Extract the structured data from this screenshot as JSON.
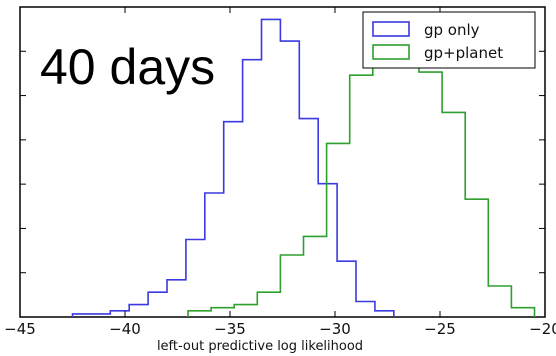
{
  "chart_data": {
    "type": "histogram",
    "annotation": "40 days",
    "xlabel": "left-out predictive log likelihood",
    "ylabel": "",
    "xlim": [
      -45,
      -20
    ],
    "ylim": [
      0,
      1.0
    ],
    "xticks": [
      -45,
      -40,
      -35,
      -30,
      -25,
      -20
    ],
    "xtick_labels": [
      "−45",
      "−40",
      "−35",
      "−30",
      "−25",
      "−20"
    ],
    "grid": false,
    "legend_position": "top-right",
    "series": [
      {
        "name": "gp only",
        "color": "#3a3ae0",
        "bin_edges": [
          -42.5,
          -41.6,
          -40.7,
          -39.8,
          -38.9,
          -38.0,
          -37.1,
          -36.2,
          -35.3,
          -34.4,
          -33.5,
          -32.6,
          -31.7,
          -30.8,
          -29.9,
          -29.0,
          -28.1,
          -27.2
        ],
        "counts": [
          0.01,
          0.01,
          0.02,
          0.04,
          0.08,
          0.12,
          0.25,
          0.4,
          0.63,
          0.83,
          0.96,
          0.89,
          0.64,
          0.43,
          0.18,
          0.05,
          0.02
        ]
      },
      {
        "name": "gp+planet",
        "color": "#2ea02e",
        "bin_edges": [
          -37.0,
          -35.9,
          -34.8,
          -33.7,
          -32.6,
          -31.5,
          -30.4,
          -29.3,
          -28.2,
          -27.1,
          -26.0,
          -24.9,
          -23.8,
          -22.7,
          -21.6,
          -20.5
        ],
        "counts": [
          0.02,
          0.03,
          0.04,
          0.08,
          0.2,
          0.26,
          0.56,
          0.78,
          0.92,
          0.89,
          0.79,
          0.66,
          0.38,
          0.1,
          0.03
        ]
      }
    ]
  }
}
